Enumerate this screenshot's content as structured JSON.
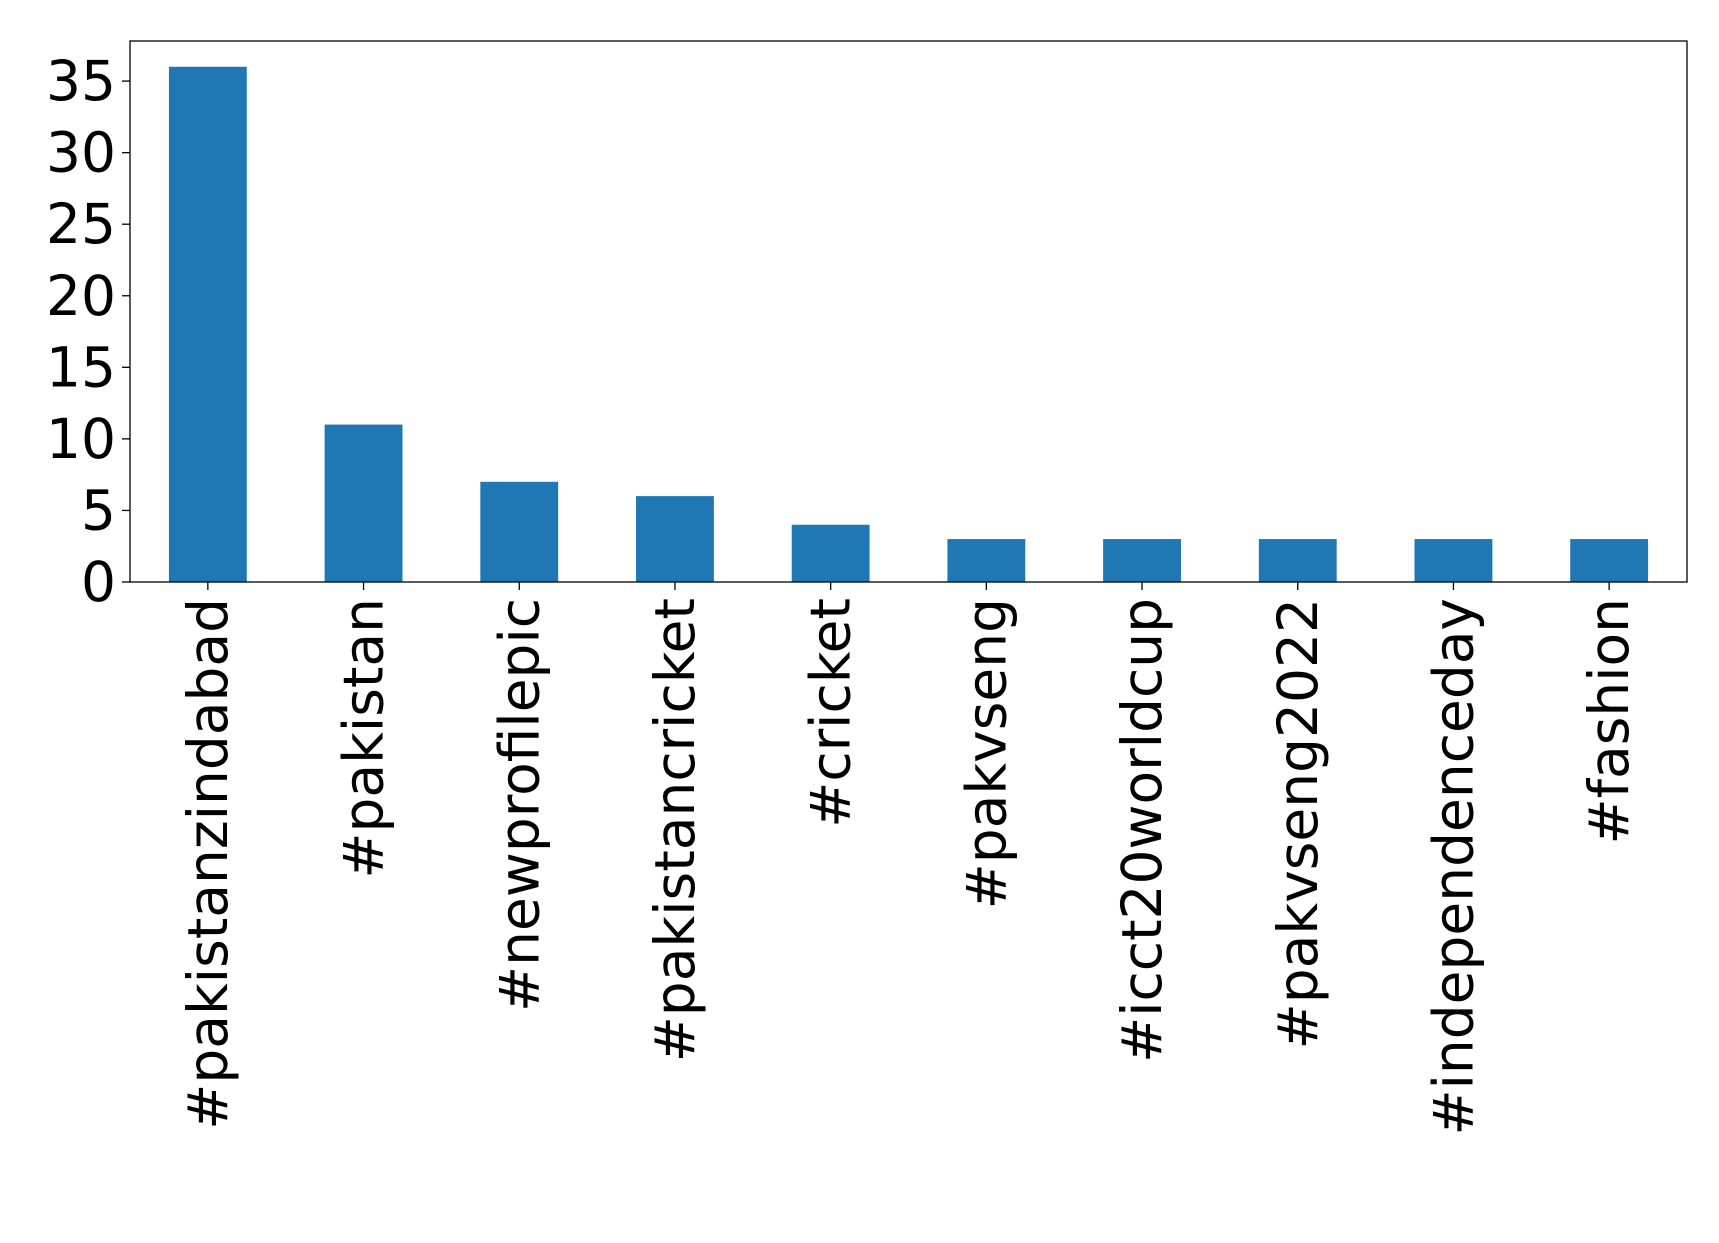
{
  "chart_data": {
    "type": "bar",
    "title": "",
    "xlabel": "",
    "ylabel": "",
    "categories": [
      "#pakistanzindabad",
      "#pakistan",
      "#newprofilepic",
      "#pakistancricket",
      "#cricket",
      "#pakvseng",
      "#icct20worldcup",
      "#pakvseng2022",
      "#independenceday",
      "#fashion"
    ],
    "values": [
      36,
      11,
      7,
      6,
      4,
      3,
      3,
      3,
      3,
      3
    ],
    "ylim": [
      0,
      37.8
    ],
    "yticks": [
      0,
      5,
      10,
      15,
      20,
      25,
      30,
      35
    ],
    "grid": false,
    "legend": "none",
    "bar_color": "#1f77b4"
  }
}
